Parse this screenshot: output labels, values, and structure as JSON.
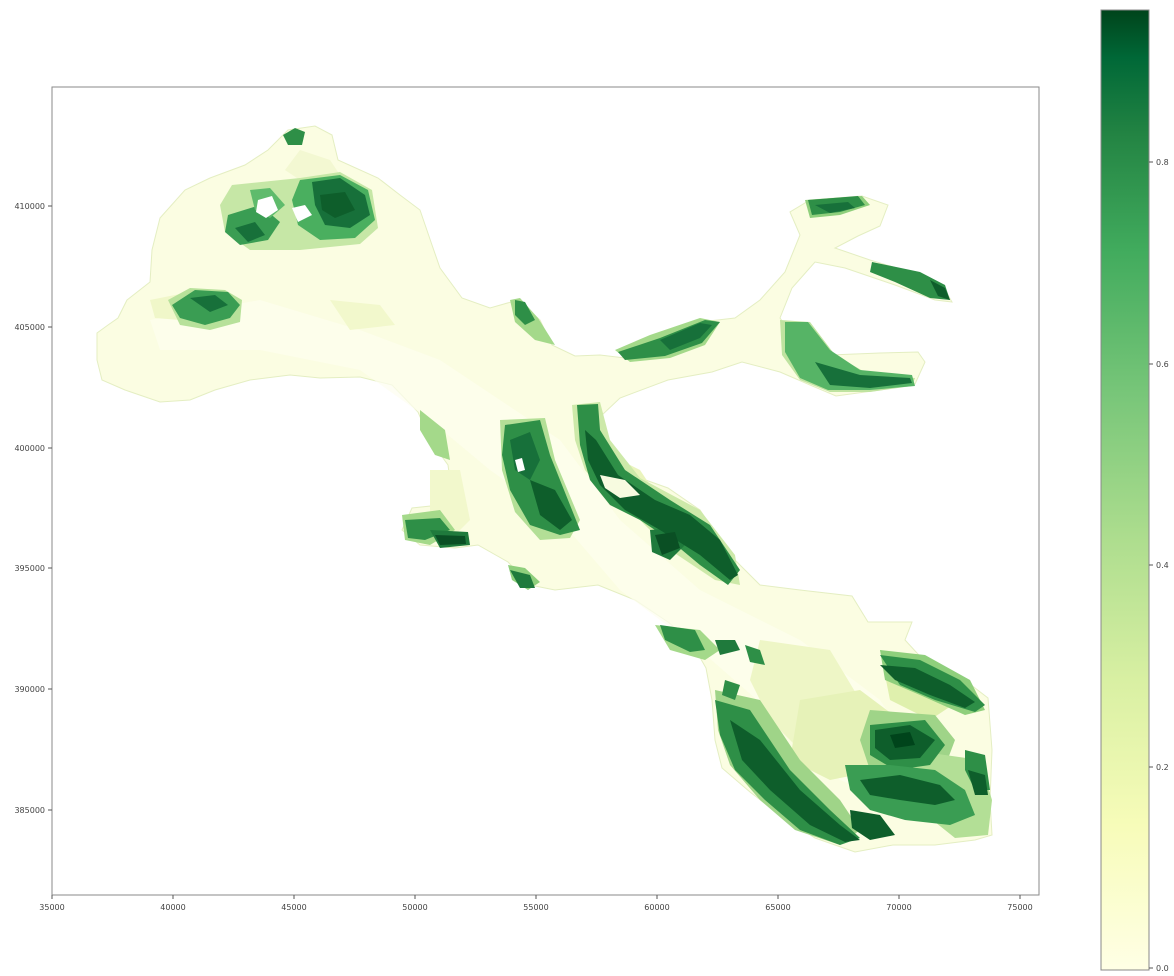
{
  "map": {
    "x_ticks": [
      "35000",
      "40000",
      "45000",
      "50000",
      "55000",
      "60000",
      "65000",
      "70000",
      "75000"
    ],
    "y_ticks": [
      "410000",
      "405000",
      "400000",
      "395000",
      "390000",
      "385000"
    ],
    "colorbar_ticks": [
      "0.8",
      "0.6",
      "0.4",
      "0.2",
      "0.0"
    ],
    "colormap": "YlGn",
    "colors": {
      "water": "#fbfde2",
      "shallow": "#e9f4bf",
      "light_green": "#a6d98b",
      "mid_green": "#5cb568",
      "green": "#2f8f46",
      "dark_green": "#0e5e2b",
      "deepest": "#00441b"
    }
  }
}
